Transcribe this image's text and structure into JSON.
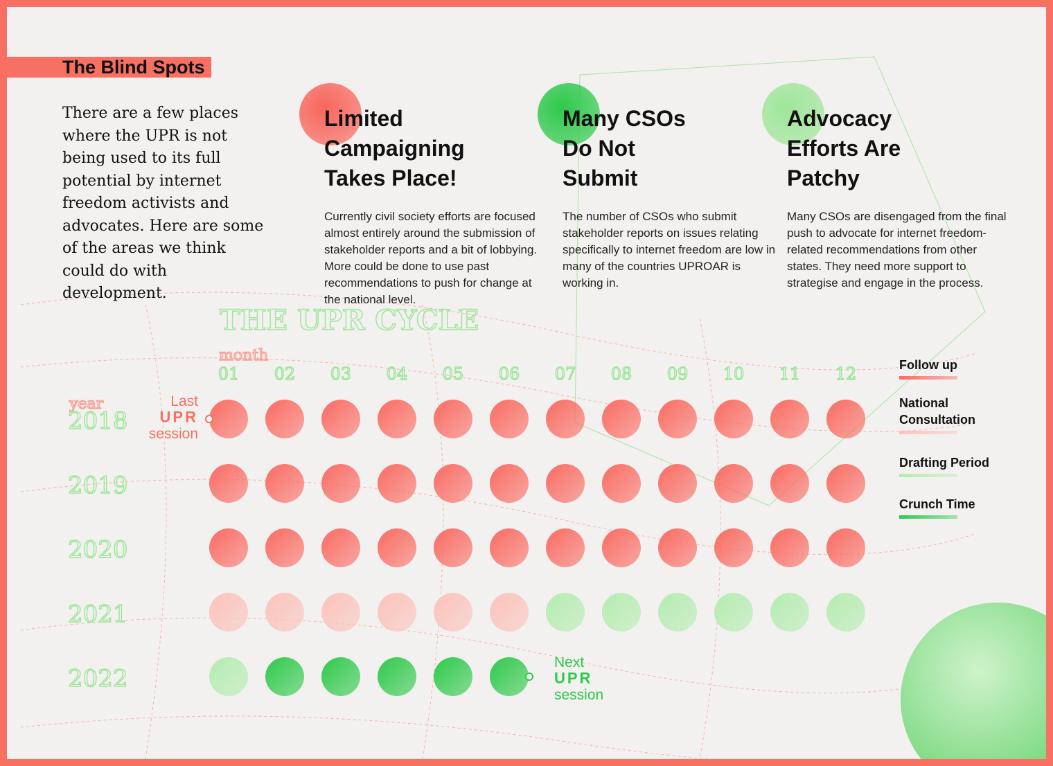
{
  "header": {
    "title": "The Blind Spots"
  },
  "intro": "There are a few places where the UPR is not being used to its full potential by internet freedom activists and advocates. Here are some of the areas we think could do with development.",
  "cards": [
    {
      "title_lines": [
        "Limited",
        "Campaigning",
        "Takes Place!"
      ],
      "body": "Currently civil society efforts are focused almost entirely around the submission of stakeholder reports and a bit of lobbying. More could be done to use past recommendations to push for change at the national level.",
      "color": "#f9665c"
    },
    {
      "title_lines": [
        "Many CSOs",
        "Do Not",
        "Submit"
      ],
      "body": "The number of CSOs who submit stakeholder reports on issues relating specifically to internet freedom are low in many of the countries UPROAR is working in.",
      "color": "#2ec94a"
    },
    {
      "title_lines": [
        "Advocacy",
        "Efforts Are",
        "Patchy"
      ],
      "body": "Many CSOs are disengaged from the final push to advocate for internet freedom-related recommendations from other states. They need more support to strategise and engage in the process.",
      "color": "#9fe69a"
    }
  ],
  "cycle": {
    "title": "THE UPR CYCLE",
    "month_label": "month",
    "year_label": "year",
    "months": [
      "01",
      "02",
      "03",
      "04",
      "05",
      "06",
      "07",
      "08",
      "09",
      "10",
      "11",
      "12"
    ],
    "years": [
      "2018",
      "2019",
      "2020",
      "2021",
      "2022"
    ],
    "grid": [
      [
        0,
        0,
        0,
        0,
        0,
        0,
        0,
        0,
        0,
        0,
        0,
        0
      ],
      [
        0,
        0,
        0,
        0,
        0,
        0,
        0,
        0,
        0,
        0,
        0,
        0
      ],
      [
        0,
        0,
        0,
        0,
        0,
        0,
        0,
        0,
        0,
        0,
        0,
        0
      ],
      [
        1,
        1,
        1,
        1,
        1,
        1,
        2,
        2,
        2,
        2,
        2,
        2
      ],
      [
        2,
        3,
        3,
        3,
        3,
        3
      ]
    ],
    "last_session": [
      "Last",
      "UPR",
      "session"
    ],
    "next_session": [
      "Next",
      "UPR",
      "session"
    ]
  },
  "legend": [
    {
      "name": "Follow up",
      "color": "#fa6b62"
    },
    {
      "name": "National Consultation",
      "color": "#fcc2bb"
    },
    {
      "name": "Drafting Period",
      "color": "#b4ecb0"
    },
    {
      "name": "Crunch Time",
      "color": "#2ec94a"
    }
  ]
}
